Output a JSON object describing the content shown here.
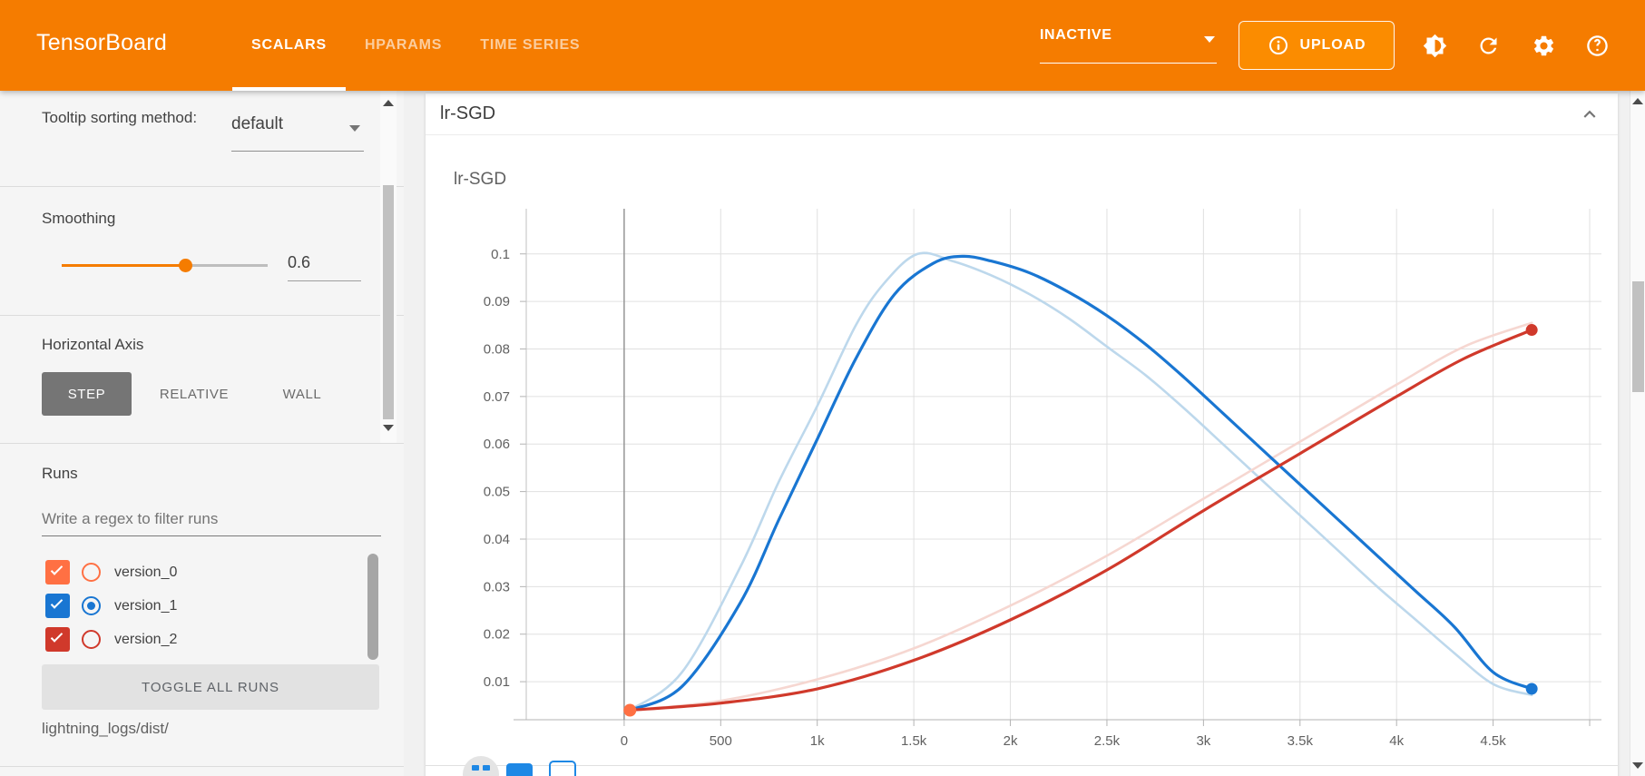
{
  "header": {
    "logo": "TensorBoard",
    "tabs": [
      {
        "label": "SCALARS",
        "active": true
      },
      {
        "label": "HPARAMS",
        "active": false
      },
      {
        "label": "TIME SERIES",
        "active": false
      }
    ],
    "status_dropdown_value": "INACTIVE",
    "upload_label": "UPLOAD",
    "icons": [
      "info-icon",
      "brightness-icon",
      "refresh-icon",
      "settings-icon",
      "help-icon"
    ],
    "colors": {
      "bar": "#f57c00",
      "upload_bg": "#fb8c00"
    }
  },
  "sidebar": {
    "tooltip_sorting": {
      "label": "Tooltip sorting method:",
      "value": "default"
    },
    "smoothing": {
      "label": "Smoothing",
      "value": "0.6",
      "fraction": 0.6
    },
    "horizontal_axis": {
      "label": "Horizontal Axis",
      "options": [
        {
          "label": "STEP",
          "active": true
        },
        {
          "label": "RELATIVE",
          "active": false
        },
        {
          "label": "WALL",
          "active": false
        }
      ]
    },
    "runs": {
      "label": "Runs",
      "filter_placeholder": "Write a regex to filter runs",
      "items": [
        {
          "name": "version_0",
          "color": "#ff7043",
          "checked": true,
          "radio_selected": false
        },
        {
          "name": "version_1",
          "color": "#1976d2",
          "checked": true,
          "radio_selected": true
        },
        {
          "name": "version_2",
          "color": "#d0392b",
          "checked": true,
          "radio_selected": false
        }
      ],
      "toggle_all_label": "TOGGLE ALL RUNS",
      "log_path": "lightning_logs/dist/"
    }
  },
  "main": {
    "section_title": "lr-SGD"
  },
  "chart_data": {
    "type": "line",
    "title": "lr-SGD",
    "xlabel": "",
    "ylabel": "",
    "xlim": [
      -507,
      5061
    ],
    "ylim": [
      0.002,
      0.1095
    ],
    "grid": true,
    "zero_line_x": 0,
    "x_ticks": [
      {
        "v": 0,
        "label": "0"
      },
      {
        "v": 500,
        "label": "500"
      },
      {
        "v": 1000,
        "label": "1k"
      },
      {
        "v": 1500,
        "label": "1.5k"
      },
      {
        "v": 2000,
        "label": "2k"
      },
      {
        "v": 2500,
        "label": "2.5k"
      },
      {
        "v": 3000,
        "label": "3k"
      },
      {
        "v": 3500,
        "label": "3.5k"
      },
      {
        "v": 4000,
        "label": "4k"
      },
      {
        "v": 4500,
        "label": "4.5k"
      }
    ],
    "x_grid_extra": [
      5000
    ],
    "y_ticks": [
      {
        "v": 0.01,
        "label": "0.01"
      },
      {
        "v": 0.02,
        "label": "0.02"
      },
      {
        "v": 0.03,
        "label": "0.03"
      },
      {
        "v": 0.04,
        "label": "0.04"
      },
      {
        "v": 0.05,
        "label": "0.05"
      },
      {
        "v": 0.06,
        "label": "0.06"
      },
      {
        "v": 0.07,
        "label": "0.07"
      },
      {
        "v": 0.08,
        "label": "0.08"
      },
      {
        "v": 0.09,
        "label": "0.09"
      },
      {
        "v": 0.1,
        "label": "0.1"
      }
    ],
    "series": [
      {
        "name": "version_0",
        "color": "#ff7043",
        "dot_only": true,
        "width": 0,
        "x": [
          30
        ],
        "y": [
          0.004
        ]
      },
      {
        "name": "version_1 (unsmoothed)",
        "color": "#bdd8ec",
        "width": 2.6,
        "x": [
          30,
          300,
          600,
          800,
          1000,
          1200,
          1350,
          1520,
          1700,
          1900,
          2100,
          2300,
          2500,
          2700,
          2900,
          3100,
          3300,
          3500,
          3700,
          3900,
          4100,
          4300,
          4500,
          4700
        ],
        "y": [
          0.004,
          0.012,
          0.034,
          0.052,
          0.068,
          0.085,
          0.094,
          0.1,
          0.0985,
          0.0955,
          0.0915,
          0.0865,
          0.0805,
          0.0745,
          0.0675,
          0.06,
          0.0525,
          0.045,
          0.0375,
          0.03,
          0.023,
          0.016,
          0.0095,
          0.0072
        ]
      },
      {
        "name": "version_2 (unsmoothed)",
        "color": "#f6d7d1",
        "width": 2.6,
        "x": [
          30,
          500,
          1000,
          1500,
          2000,
          2500,
          3000,
          3500,
          4000,
          4350,
          4700
        ],
        "y": [
          0.004,
          0.006,
          0.0105,
          0.017,
          0.026,
          0.0365,
          0.0485,
          0.0605,
          0.0725,
          0.0805,
          0.0855
        ]
      },
      {
        "name": "version_1",
        "color": "#1976d2",
        "width": 3.2,
        "end_dot": true,
        "x": [
          30,
          300,
          600,
          800,
          1000,
          1200,
          1400,
          1600,
          1750,
          1900,
          2100,
          2300,
          2500,
          2700,
          2900,
          3100,
          3300,
          3500,
          3700,
          3900,
          4100,
          4300,
          4500,
          4700
        ],
        "y": [
          0.004,
          0.009,
          0.0265,
          0.044,
          0.061,
          0.078,
          0.0915,
          0.098,
          0.0995,
          0.0985,
          0.096,
          0.092,
          0.087,
          0.081,
          0.074,
          0.0665,
          0.059,
          0.0515,
          0.044,
          0.0365,
          0.029,
          0.0215,
          0.012,
          0.0085
        ]
      },
      {
        "name": "version_2",
        "color": "#d0392b",
        "width": 3.2,
        "end_dot": true,
        "x": [
          30,
          500,
          1000,
          1500,
          2000,
          2500,
          3000,
          3500,
          4000,
          4350,
          4700
        ],
        "y": [
          0.004,
          0.0055,
          0.0085,
          0.0145,
          0.023,
          0.0335,
          0.046,
          0.058,
          0.07,
          0.078,
          0.084
        ]
      }
    ]
  }
}
